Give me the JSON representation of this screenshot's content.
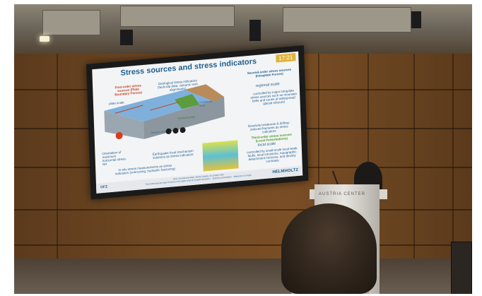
{
  "slide": {
    "title": "Stress sources and stress indicators",
    "time": "17:21",
    "first_order": "First-order stress sources (Plate Boundary Forces)",
    "second_order": "Second-order stress sources (Intraplate Forces)",
    "regional_scale": "regional scale",
    "regional_desc": "controlled by major intraplate stress sources such as mountain belts and zones of widespread glacial rebound",
    "plate_scale": "plate scale",
    "geo_indicators": "Geological stress indicators (fault-slip data, volcanic vent alignments)",
    "borehole": "Borehole breakouts & drilling-induced fractures as stress indicators",
    "third_order": "Third-order stress sources (Local Perturbations)",
    "local_scale": "local scale",
    "local_desc": "controlled by small-scale local weak faults, local intrusions, topographic detachment horizons, and density contrasts",
    "earthquake": "Earthquake focal mechanism solutions as stress indicators",
    "insitu": "In-situ stress measurements as stress indicators (overcoring, hydraulic fracturing)",
    "orientation": "Orientation of maximum horizontal stress, SH",
    "continental_crust": "Continental crust",
    "oceanic_crust": "Oceanic crust",
    "subducted": "Subducting slab",
    "gfz": "GFZ",
    "helmholtz": "HELMHOLTZ",
    "footer_line1": "EGU General Assembly, Vienna, Austria, 14-19 April 2024",
    "footer_line2": "Reconstructing the state of stress in the upper crust of complex structures – Sciencer presentation – Maksymec & Geiger"
  },
  "podium": {
    "label": "AUSTRIA CENTER"
  },
  "colors": {
    "slide_title": "#1f5f8f",
    "slide_time_bg": "#e0b43a",
    "wall_wood": "#6e4722",
    "first_order": "#c2401c",
    "third_order": "#4a9a2a"
  }
}
